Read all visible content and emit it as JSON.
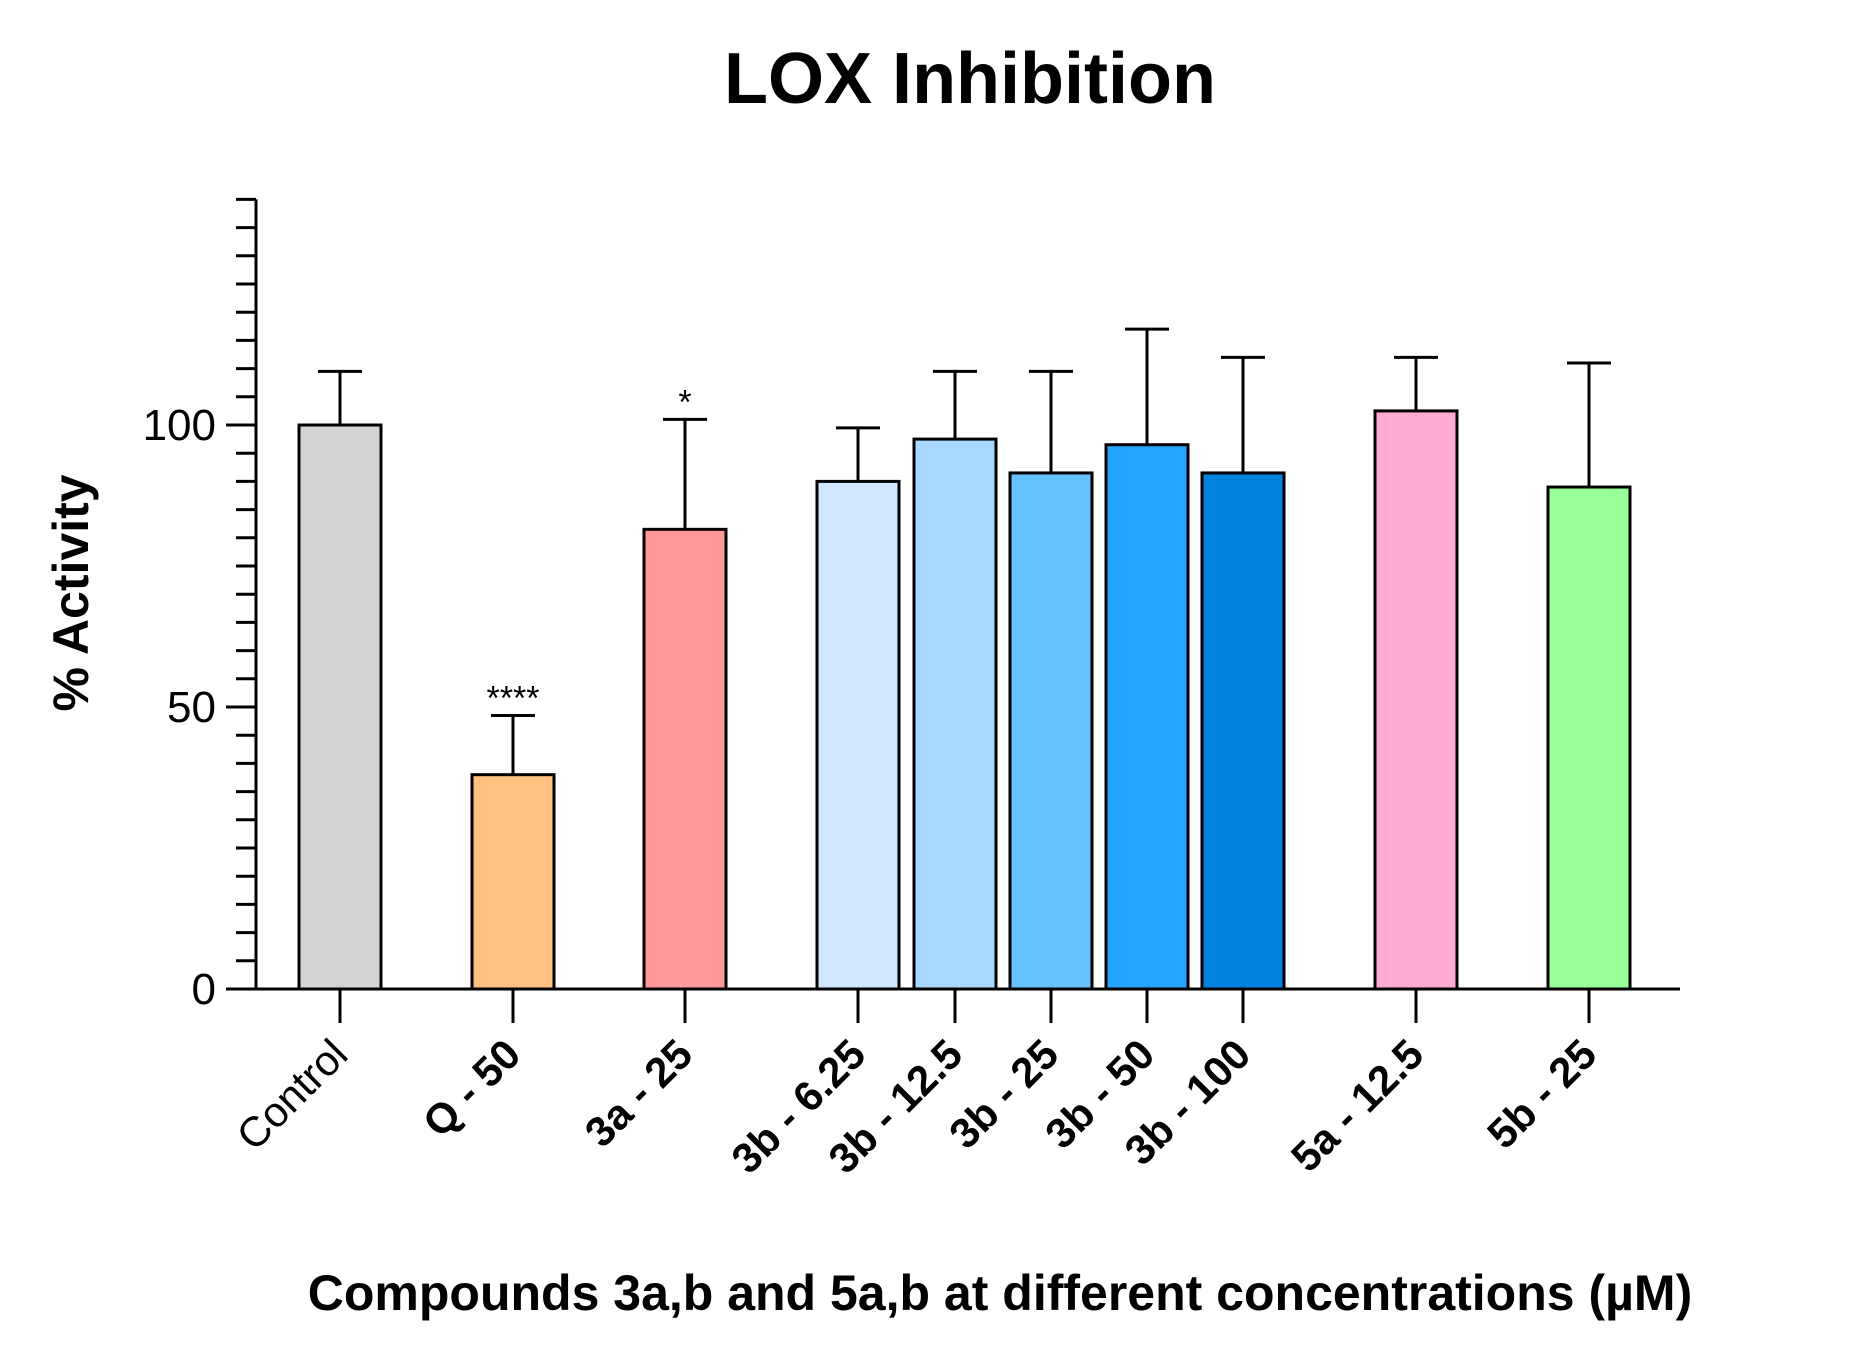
{
  "chart_data": {
    "type": "bar",
    "title": "LOX Inhibition",
    "xlabel": "Compounds 3a,b and 5a,b at different concentrations (µM)",
    "ylabel": "% Activity",
    "ylim": [
      0,
      140
    ],
    "yticks": [
      0,
      50,
      100
    ],
    "y_minor_step": 5,
    "grid": false,
    "legend": "none",
    "categories": [
      {
        "name": "Control",
        "bold": false
      },
      {
        "name": "Q - 50",
        "bold": true
      },
      {
        "name": "3a - 25",
        "bold": true
      },
      {
        "name": "3b - 6.25",
        "bold": true
      },
      {
        "name": "3b - 12.5",
        "bold": true
      },
      {
        "name": "3b - 25",
        "bold": true
      },
      {
        "name": "3b - 50",
        "bold": true
      },
      {
        "name": "3b - 100",
        "bold": true
      },
      {
        "name": "5a - 12.5",
        "bold": true
      },
      {
        "name": "5b - 25",
        "bold": true
      }
    ],
    "values": [
      100,
      38,
      81.5,
      90,
      97.5,
      91.5,
      96.5,
      91.5,
      102.5,
      89
    ],
    "errors": [
      9.5,
      10.5,
      19.5,
      9.5,
      12,
      18,
      20.5,
      20.5,
      9.5,
      22
    ],
    "significance": [
      "",
      "****",
      "*",
      "",
      "",
      "",
      "",
      "",
      "",
      ""
    ],
    "colors": [
      "#d3d3d3",
      "#ffc080",
      "#ff9999",
      "#cfe8ff",
      "#a8d8ff",
      "#66c1ff",
      "#25a4ff",
      "#0084e0",
      "#ffaad5",
      "#99ff99"
    ]
  }
}
